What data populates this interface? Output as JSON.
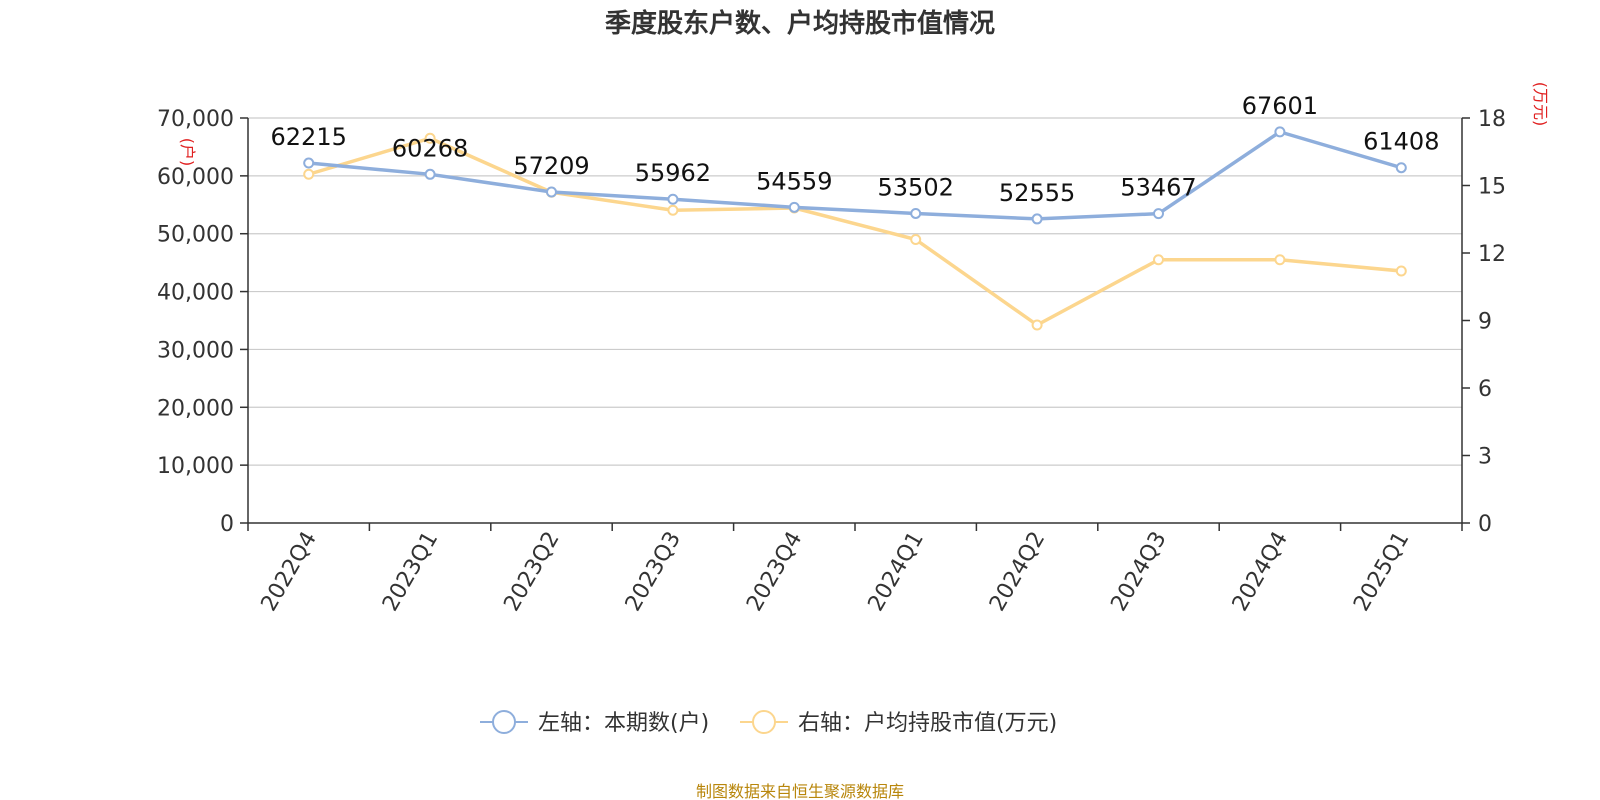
{
  "chart_data": {
    "type": "line",
    "title": "季度股东户数、户均持股市值情况",
    "categories": [
      "2022Q4",
      "2023Q1",
      "2023Q2",
      "2023Q3",
      "2023Q4",
      "2024Q1",
      "2024Q2",
      "2024Q3",
      "2024Q4",
      "2025Q1"
    ],
    "left_axis": {
      "unit": "(户)",
      "range": [
        0,
        70000
      ],
      "ticks": [
        "0",
        "10,000",
        "20,000",
        "30,000",
        "40,000",
        "50,000",
        "60,000",
        "70,000"
      ]
    },
    "right_axis": {
      "unit": "(万元)",
      "range": [
        0,
        18
      ],
      "ticks": [
        "0",
        "3",
        "6",
        "9",
        "12",
        "15",
        "18"
      ]
    },
    "grid": true,
    "legend_position": "bottom",
    "series": [
      {
        "name": "左轴：本期数(户)",
        "axis": "left",
        "color": "#8eaedc",
        "values": [
          62215,
          60268,
          57209,
          55962,
          54559,
          53502,
          52555,
          53467,
          67601,
          61408
        ],
        "labels": [
          "62215",
          "60268",
          "57209",
          "55962",
          "54559",
          "53502",
          "52555",
          "53467",
          "67601",
          "61408"
        ]
      },
      {
        "name": "右轴：户均持股市值(万元)",
        "axis": "right",
        "color": "#fcd68e",
        "values": [
          15.5,
          17.1,
          14.7,
          13.9,
          14.0,
          12.6,
          8.8,
          11.7,
          11.7,
          11.2
        ]
      }
    ]
  },
  "source_text": "制图数据来自恒生聚源数据库"
}
